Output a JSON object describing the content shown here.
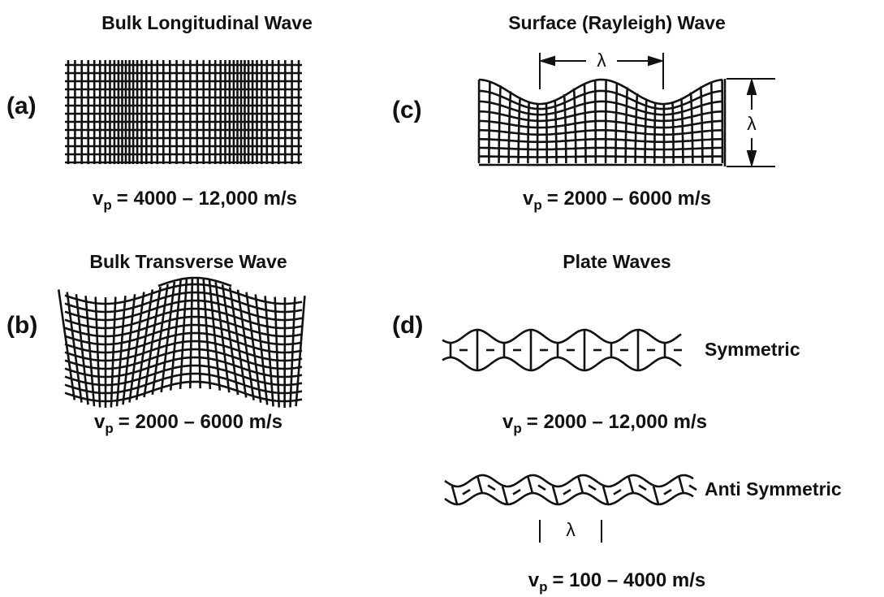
{
  "panels": [
    {
      "label": "(a)",
      "title": "Bulk Longitudinal Wave",
      "velocity": {
        "symbol": "v",
        "subscript": "p",
        "range": "= 4000 – 12,000 m/s"
      }
    },
    {
      "label": "(b)",
      "title": "Bulk Transverse Wave",
      "velocity": {
        "symbol": "v",
        "subscript": "p",
        "range": "= 2000 – 6000 m/s"
      }
    },
    {
      "label": "(c)",
      "title": "Surface (Rayleigh) Wave",
      "horizontal_marker": "λ",
      "vertical_marker": "λ",
      "velocity": {
        "symbol": "v",
        "subscript": "p",
        "range": "= 2000 – 6000 m/s"
      }
    },
    {
      "label": "(d)",
      "title": "Plate Waves",
      "modes": [
        {
          "name": "Symmetric",
          "velocity": {
            "symbol": "v",
            "subscript": "p",
            "range": "= 2000 – 12,000 m/s"
          }
        },
        {
          "name": "Anti Symmetric",
          "marker": "λ",
          "velocity": {
            "symbol": "v",
            "subscript": "p",
            "range": "= 100 – 4000 m/s"
          }
        }
      ]
    }
  ]
}
